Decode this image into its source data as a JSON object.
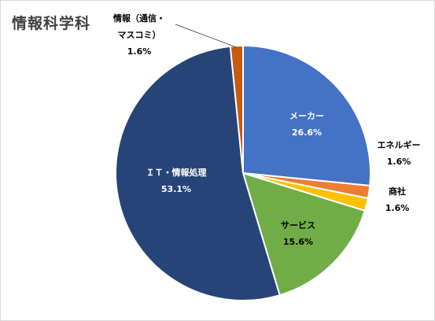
{
  "chart_data": {
    "type": "pie",
    "title": "情報科学科",
    "start": "12 o'clock, clockwise",
    "slices": [
      {
        "name": "メーカー",
        "value": 26.6,
        "label": "26.6%",
        "color": "#4472c4",
        "label_color": "#ffffff",
        "label_lines": [
          "メーカー"
        ]
      },
      {
        "name": "エネルギー",
        "value": 1.6,
        "label": "1.6%",
        "color": "#ed7d31",
        "label_color": "#000000",
        "label_lines": [
          "エネルギー"
        ]
      },
      {
        "name": "商社",
        "value": 1.6,
        "label": "1.6%",
        "color": "#ffc000",
        "label_color": "#000000",
        "label_lines": [
          "商社"
        ]
      },
      {
        "name": "サービス",
        "value": 15.6,
        "label": "15.6%",
        "color": "#70ad47",
        "label_color": "#000000",
        "label_lines": [
          "サービス"
        ]
      },
      {
        "name": "ＩＴ・情報処理",
        "value": 53.1,
        "label": "53.1%",
        "color": "#264478",
        "label_color": "#ffffff",
        "label_lines": [
          "ＩＴ・情報処理"
        ]
      },
      {
        "name": "情報（通信・マスコミ）",
        "value": 1.6,
        "label": "1.6%",
        "color": "#c55a11",
        "label_color": "#000000",
        "label_lines": [
          "情報（通信・",
          "マスコミ）"
        ]
      }
    ]
  }
}
